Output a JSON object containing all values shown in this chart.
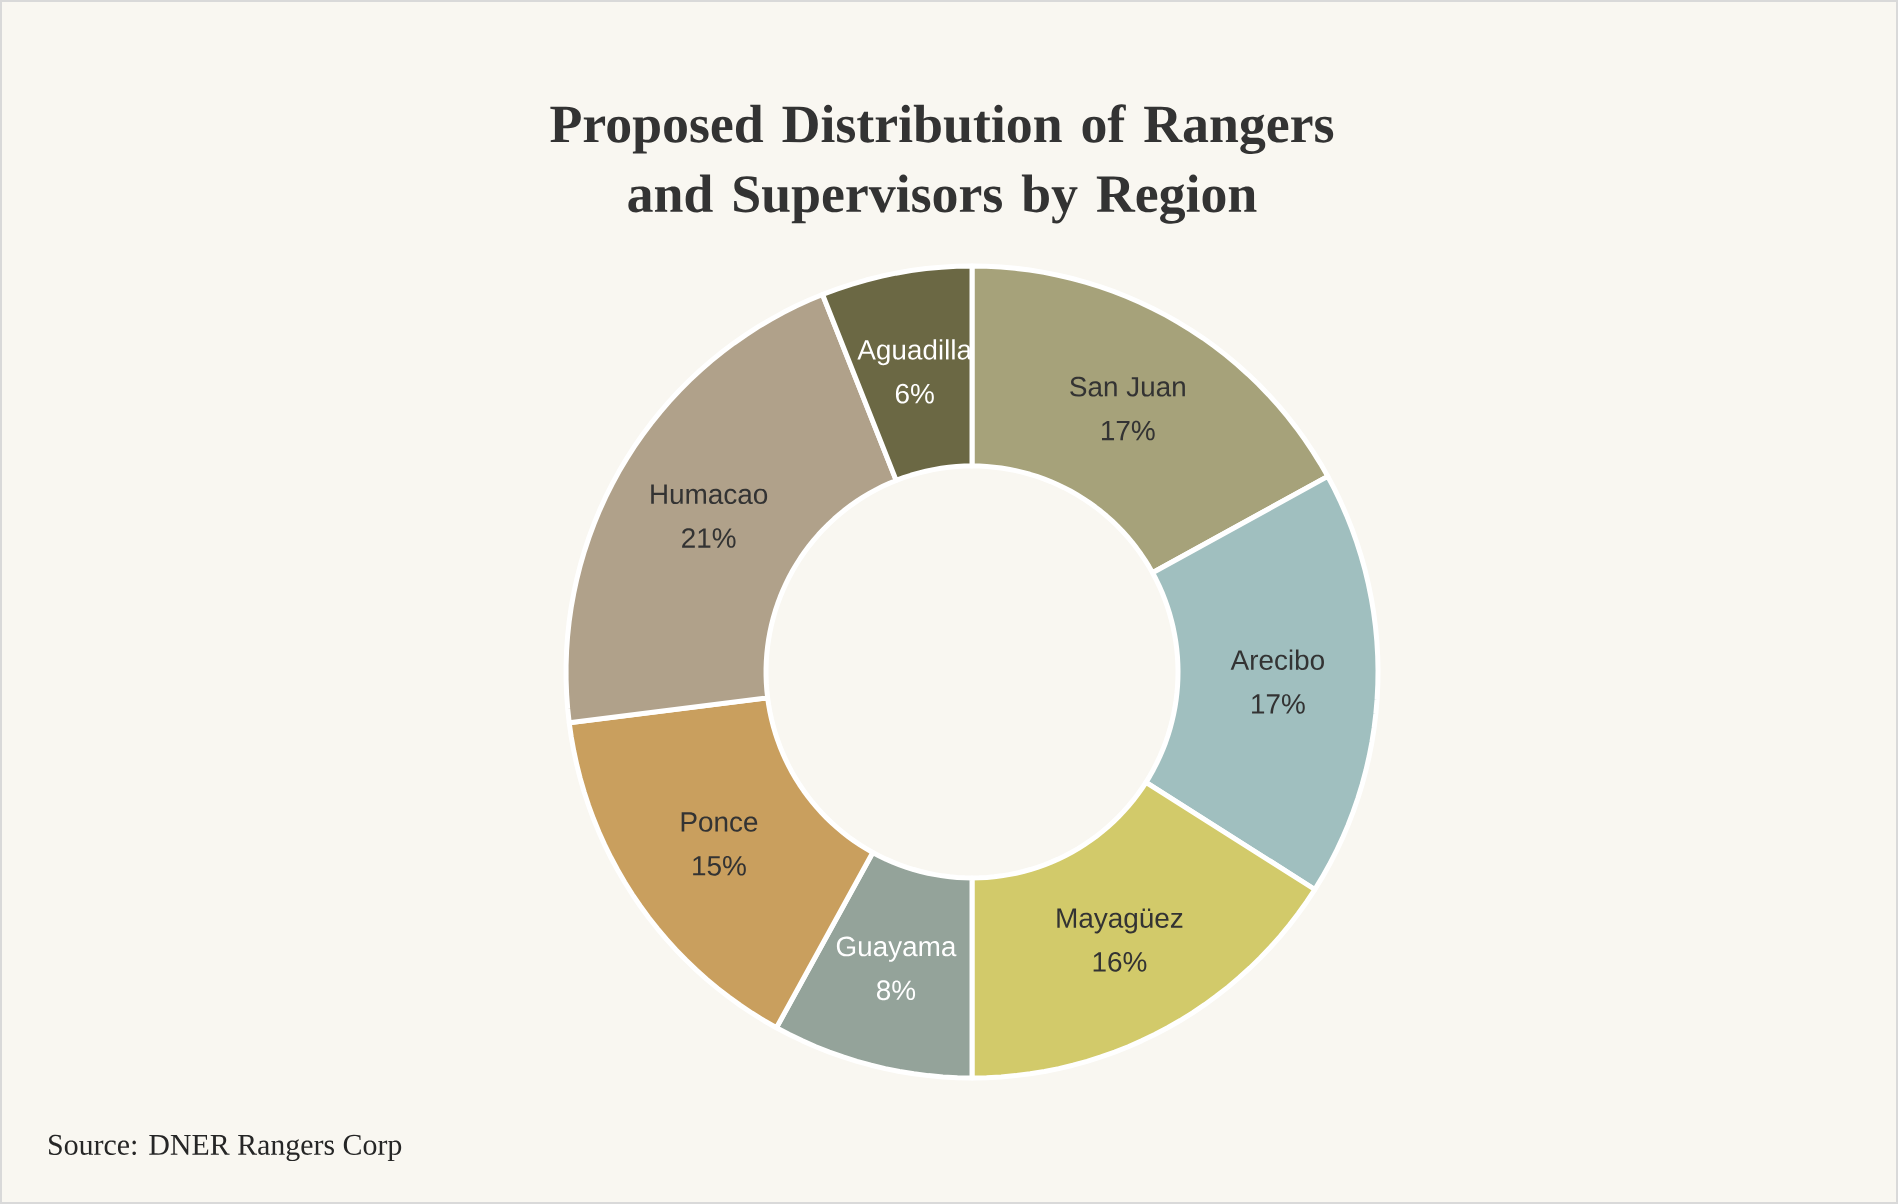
{
  "chart_data": {
    "type": "donut",
    "title": "Proposed Distribution of Rangers and Supervisors by Region",
    "categories": [
      "San Juan",
      "Arecibo",
      "Mayagüez",
      "Guayama",
      "Ponce",
      "Humacao",
      "Aguadilla"
    ],
    "values": [
      17,
      17,
      16,
      8,
      15,
      21,
      6
    ],
    "value_labels": [
      "17%",
      "17%",
      "16%",
      "8%",
      "15%",
      "21%",
      "6%"
    ],
    "colors": [
      "#a6a27a",
      "#a0bfbf",
      "#d2ca6a",
      "#94a39a",
      "#c99f5e",
      "#b0a18a",
      "#6b6844"
    ],
    "annotations": [
      "Source: DNER Rangers Corp"
    ]
  }
}
